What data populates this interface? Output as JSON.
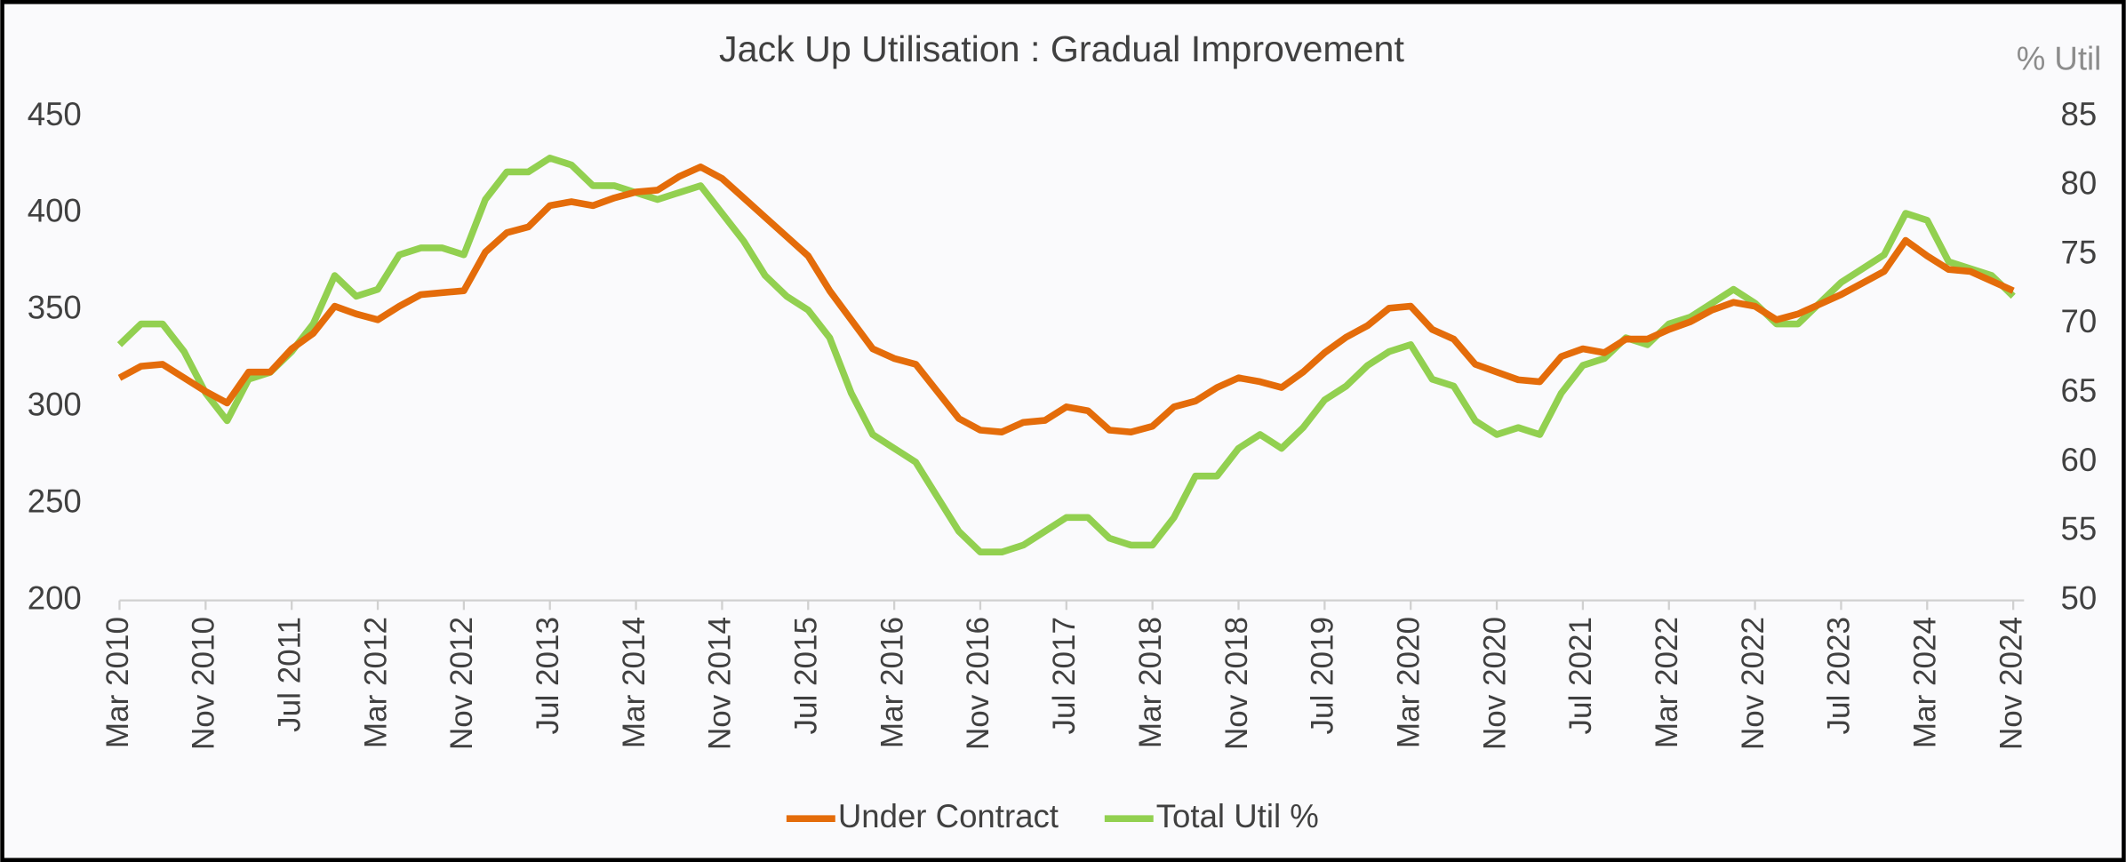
{
  "chart_data": {
    "type": "line",
    "title": "Jack Up Utilisation : Gradual Improvement",
    "y2_label": "% Util",
    "categories": [
      "Mar 2010",
      null,
      null,
      null,
      "Nov 2010",
      null,
      null,
      null,
      "Jul 2011",
      null,
      null,
      null,
      "Mar 2012",
      null,
      null,
      null,
      "Nov 2012",
      null,
      null,
      null,
      "Jul 2013",
      null,
      null,
      null,
      "Mar 2014",
      null,
      null,
      null,
      "Nov 2014",
      null,
      null,
      null,
      "Jul 2015",
      null,
      null,
      null,
      "Mar 2016",
      null,
      null,
      null,
      "Nov 2016",
      null,
      null,
      null,
      "Jul 2017",
      null,
      null,
      null,
      "Mar 2018",
      null,
      null,
      null,
      "Nov 2018",
      null,
      null,
      null,
      "Jul 2019",
      null,
      null,
      null,
      "Mar 2020",
      null,
      null,
      null,
      "Nov 2020",
      null,
      null,
      null,
      "Jul 2021",
      null,
      null,
      null,
      "Mar 2022",
      null,
      null,
      null,
      "Nov 2022",
      null,
      null,
      null,
      "Jul 2023",
      null,
      null,
      null,
      "Mar 2024",
      null,
      null,
      null,
      "Nov 2024"
    ],
    "series": [
      {
        "name": "Under Contract",
        "color": "#e46c0a",
        "axis": "y",
        "values": [
          315,
          321,
          322,
          315,
          308,
          302,
          318,
          318,
          330,
          338,
          352,
          348,
          345,
          352,
          358,
          359,
          360,
          380,
          390,
          393,
          404,
          406,
          404,
          408,
          411,
          412,
          419,
          424,
          418,
          408,
          398,
          388,
          378,
          360,
          345,
          330,
          325,
          322,
          308,
          294,
          288,
          287,
          292,
          293,
          300,
          298,
          288,
          287,
          290,
          300,
          303,
          310,
          315,
          313,
          310,
          318,
          328,
          336,
          342,
          351,
          352,
          340,
          335,
          322,
          318,
          314,
          313,
          326,
          330,
          328,
          335,
          335,
          340,
          344,
          350,
          354,
          352,
          345,
          348,
          353,
          358,
          364,
          370,
          386,
          378,
          371,
          370,
          365,
          360
        ]
      },
      {
        "name": "Total Util %",
        "color": "#92d050",
        "axis": "y2",
        "values": [
          68.5,
          70,
          70,
          68,
          65,
          63,
          66,
          66.5,
          68,
          70,
          73.5,
          72,
          72.5,
          75,
          75.5,
          75.5,
          75,
          79,
          81,
          81,
          82,
          81.5,
          80,
          80,
          79.5,
          79,
          79.5,
          80,
          78,
          76,
          73.5,
          72,
          71,
          69,
          65,
          62,
          61,
          60,
          57.5,
          55,
          53.5,
          53.5,
          54,
          55,
          56,
          56,
          54.5,
          54,
          54,
          56,
          59,
          59,
          61,
          62,
          61,
          62.5,
          64.5,
          65.5,
          67,
          68,
          68.5,
          66,
          65.5,
          63,
          62,
          62.5,
          62,
          65,
          67,
          67.5,
          69,
          68.5,
          70,
          70.5,
          71.5,
          72.5,
          71.5,
          70,
          70,
          71.5,
          73,
          74,
          75,
          78,
          77.5,
          74.5,
          74,
          73.5,
          72
        ]
      }
    ],
    "ylim": [
      200,
      450
    ],
    "yticks": [
      200,
      250,
      300,
      350,
      400,
      450
    ],
    "y2lim": [
      50,
      85
    ],
    "y2ticks": [
      50,
      55,
      60,
      65,
      70,
      75,
      80,
      85
    ],
    "grid": false,
    "legend": "bottom"
  }
}
